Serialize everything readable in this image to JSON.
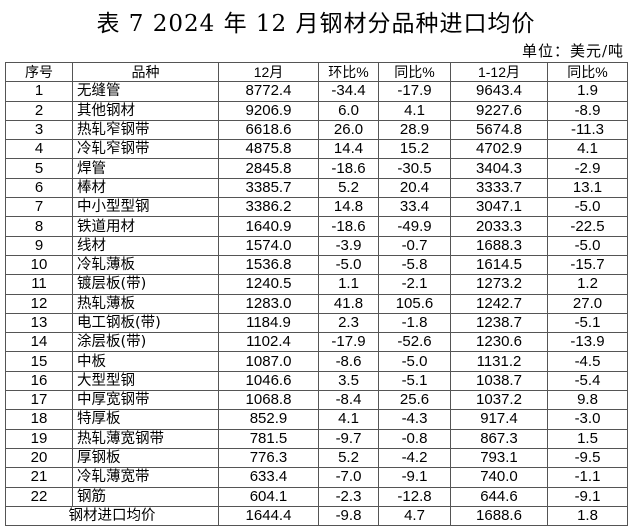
{
  "title": "表 7   2024 年 12 月钢材分品种进口均价",
  "unit": "单位：美元/吨",
  "columns": [
    "序号",
    "品种",
    "12月",
    "环比%",
    "同比%",
    "1-12月",
    "同比%"
  ],
  "rows": [
    [
      "1",
      "无缝管",
      "8772.4",
      "-34.4",
      "-17.9",
      "9643.4",
      "1.9"
    ],
    [
      "2",
      "其他钢材",
      "9206.9",
      "6.0",
      "4.1",
      "9227.6",
      "-8.9"
    ],
    [
      "3",
      "热轧窄钢带",
      "6618.6",
      "26.0",
      "28.9",
      "5674.8",
      "-11.3"
    ],
    [
      "4",
      "冷轧窄钢带",
      "4875.8",
      "14.4",
      "15.2",
      "4702.9",
      "4.1"
    ],
    [
      "5",
      "焊管",
      "2845.8",
      "-18.6",
      "-30.5",
      "3404.3",
      "-2.9"
    ],
    [
      "6",
      "棒材",
      "3385.7",
      "5.2",
      "20.4",
      "3333.7",
      "13.1"
    ],
    [
      "7",
      "中小型型钢",
      "3386.2",
      "14.8",
      "33.4",
      "3047.1",
      "-5.0"
    ],
    [
      "8",
      "铁道用材",
      "1640.9",
      "-18.6",
      "-49.9",
      "2033.3",
      "-22.5"
    ],
    [
      "9",
      "线材",
      "1574.0",
      "-3.9",
      "-0.7",
      "1688.3",
      "-5.0"
    ],
    [
      "10",
      "冷轧薄板",
      "1536.8",
      "-5.0",
      "-5.8",
      "1614.5",
      "-15.7"
    ],
    [
      "11",
      "镀层板(带)",
      "1240.5",
      "1.1",
      "-2.1",
      "1273.2",
      "1.2"
    ],
    [
      "12",
      "热轧薄板",
      "1283.0",
      "41.8",
      "105.6",
      "1242.7",
      "27.0"
    ],
    [
      "13",
      "电工钢板(带)",
      "1184.9",
      "2.3",
      "-1.8",
      "1238.7",
      "-5.1"
    ],
    [
      "14",
      "涂层板(带)",
      "1102.4",
      "-17.9",
      "-52.6",
      "1230.6",
      "-13.9"
    ],
    [
      "15",
      "中板",
      "1087.0",
      "-8.6",
      "-5.0",
      "1131.2",
      "-4.5"
    ],
    [
      "16",
      "大型型钢",
      "1046.6",
      "3.5",
      "-5.1",
      "1038.7",
      "-5.4"
    ],
    [
      "17",
      "中厚宽钢带",
      "1068.8",
      "-8.4",
      "25.6",
      "1037.2",
      "9.8"
    ],
    [
      "18",
      "特厚板",
      "852.9",
      "4.1",
      "-4.3",
      "917.4",
      "-3.0"
    ],
    [
      "19",
      "热轧薄宽钢带",
      "781.5",
      "-9.7",
      "-0.8",
      "867.3",
      "1.5"
    ],
    [
      "20",
      "厚钢板",
      "776.3",
      "5.2",
      "-4.2",
      "793.1",
      "-9.5"
    ],
    [
      "21",
      "冷轧薄宽带",
      "633.4",
      "-7.0",
      "-9.1",
      "740.0",
      "-1.1"
    ],
    [
      "22",
      "钢筋",
      "604.1",
      "-2.3",
      "-12.8",
      "644.6",
      "-9.1"
    ]
  ],
  "total": [
    "钢材进口均价",
    "1644.4",
    "-9.8",
    "4.7",
    "1688.6",
    "1.8"
  ]
}
